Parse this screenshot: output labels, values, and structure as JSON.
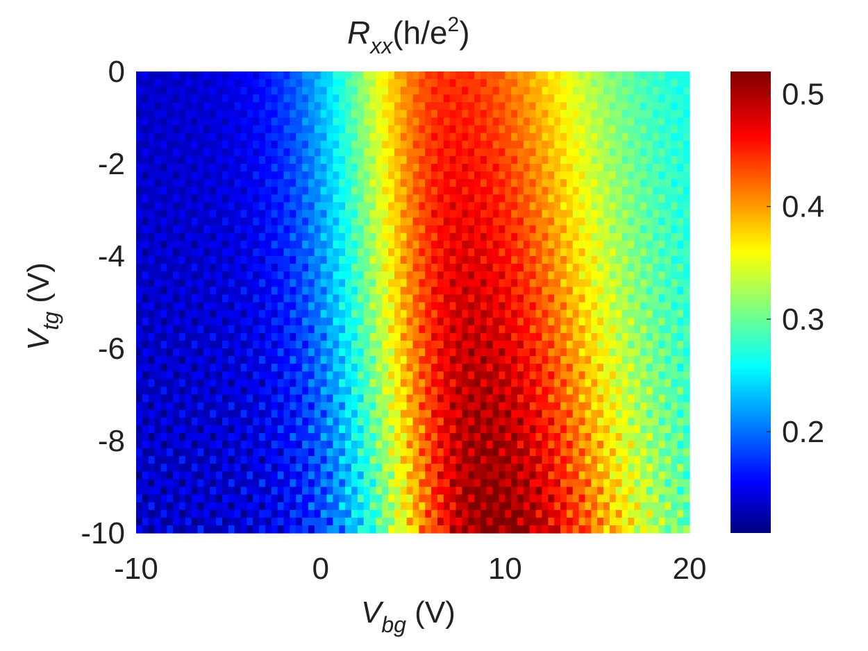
{
  "chart_data": {
    "type": "heatmap",
    "title": {
      "main": "R",
      "sub": "xx",
      "unit_open": "(h/e",
      "unit_sup": "2",
      "unit_close": ")"
    },
    "xlabel": {
      "main": "V",
      "sub": "bg",
      "unit": " (V)"
    },
    "ylabel": {
      "main": "V",
      "sub": "tg",
      "unit": " (V)"
    },
    "xlim": [
      -10,
      20
    ],
    "ylim": [
      -10,
      0
    ],
    "x_ticks": [
      "-10",
      "0",
      "10",
      "20"
    ],
    "y_ticks": [
      "0",
      "-2",
      "-4",
      "-6",
      "-8",
      "-10"
    ],
    "colorbar": {
      "range": [
        0.11,
        0.52
      ],
      "ticks": [
        "0.5",
        "0.4",
        "0.3",
        "0.2"
      ],
      "colormap": "jet"
    },
    "grid": false,
    "z_model": {
      "description": "Rxx vs (Vbg, Vtg): Gaussian ridge whose center shifts with top-gate voltage",
      "peak_center_vbg_at_vtg": [
        {
          "vtg": 0,
          "vbg": 7.0
        },
        {
          "vtg": -5,
          "vbg": 8.0
        },
        {
          "vtg": -10,
          "vbg": 9.3
        }
      ],
      "peak_rxx_at_vtg": [
        {
          "vtg": 0,
          "rxx": 0.45
        },
        {
          "vtg": -10,
          "rxx": 0.52
        }
      ],
      "background_rxx_left": 0.14,
      "background_rxx_right": 0.26
    }
  }
}
